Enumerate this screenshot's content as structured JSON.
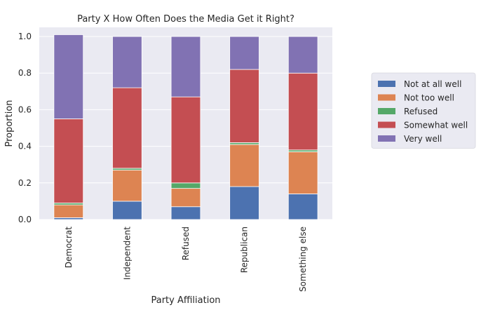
{
  "chart_data": {
    "type": "bar",
    "stacked": true,
    "title": "Party X How Often Does the Media Get it Right?",
    "xlabel": "Party Affiliation",
    "ylabel": "Proportion",
    "ylim": [
      0,
      1.05
    ],
    "yticks": [
      "0.0",
      "0.2",
      "0.4",
      "0.6",
      "0.8",
      "1.0"
    ],
    "grid": true,
    "legend_position": "right",
    "categories": [
      "Democrat",
      "Independent",
      "Refused",
      "Republican",
      "Something else"
    ],
    "series": [
      {
        "name": "Not at all well",
        "color": "#4c72b0",
        "values": [
          0.01,
          0.1,
          0.07,
          0.18,
          0.14
        ]
      },
      {
        "name": "Not too well",
        "color": "#dd8452",
        "values": [
          0.07,
          0.17,
          0.1,
          0.23,
          0.23
        ]
      },
      {
        "name": "Refused",
        "color": "#55a868",
        "values": [
          0.01,
          0.01,
          0.03,
          0.01,
          0.01
        ]
      },
      {
        "name": "Somewhat well",
        "color": "#c44e52",
        "values": [
          0.46,
          0.44,
          0.47,
          0.4,
          0.42
        ]
      },
      {
        "name": "Very well",
        "color": "#8172b3",
        "values": [
          0.46,
          0.28,
          0.33,
          0.18,
          0.2
        ]
      }
    ]
  }
}
